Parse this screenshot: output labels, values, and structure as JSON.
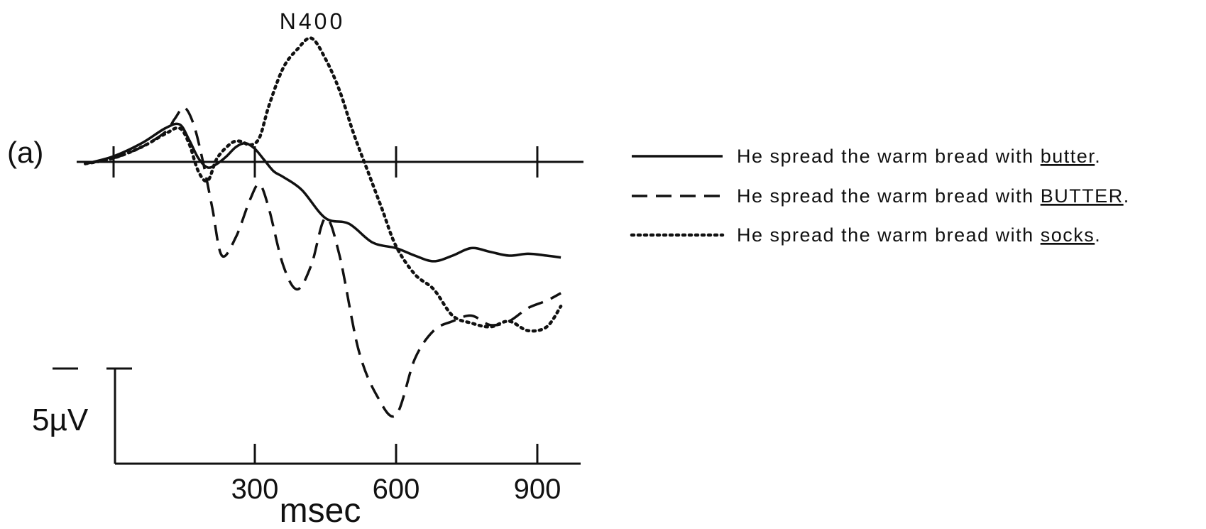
{
  "chart_data": {
    "type": "line",
    "panel_label": "(a)",
    "annotation": "N400",
    "xlabel": "msec",
    "ylabel": "",
    "xlim": [
      -100,
      1100
    ],
    "ylim": [
      -15,
      6
    ],
    "x_ticks": [
      0,
      300,
      600,
      900
    ],
    "x_tick_labels": [
      "300",
      "600",
      "900"
    ],
    "scale_bar": {
      "label": "5µV",
      "value": 5
    },
    "orientation_note": "negative plotted up",
    "series": [
      {
        "name": "He spread the warm bread with butter.",
        "style": "solid",
        "legend_prefix": "He spread the warm bread with ",
        "legend_underlined": "butter",
        "legend_suffix": ".",
        "x": [
          -60,
          0,
          60,
          110,
          140,
          160,
          180,
          200,
          220,
          240,
          260,
          280,
          300,
          320,
          340,
          360,
          400,
          450,
          500,
          550,
          600,
          640,
          680,
          720,
          760,
          800,
          840,
          880,
          920,
          950
        ],
        "y": [
          -0.1,
          0.3,
          1.0,
          1.8,
          2.0,
          1.2,
          0.2,
          -0.3,
          -0.1,
          0.3,
          0.8,
          1.0,
          0.7,
          0.1,
          -0.5,
          -0.8,
          -1.5,
          -3.0,
          -3.3,
          -4.3,
          -4.6,
          -5.0,
          -5.3,
          -5.0,
          -4.6,
          -4.8,
          -5.0,
          -4.9,
          -5.0,
          -5.1
        ]
      },
      {
        "name": "He spread the warm bread with BUTTER.",
        "style": "dashed",
        "legend_prefix": "He spread the warm bread with ",
        "legend_underlined": "BUTTER",
        "legend_suffix": ".",
        "x": [
          -60,
          0,
          60,
          110,
          130,
          150,
          170,
          190,
          210,
          230,
          260,
          290,
          310,
          330,
          360,
          390,
          420,
          450,
          480,
          520,
          560,
          600,
          640,
          680,
          720,
          760,
          800,
          840,
          880,
          920,
          950
        ],
        "y": [
          -0.1,
          0.2,
          0.8,
          1.6,
          2.3,
          2.9,
          2.0,
          0.0,
          -2.5,
          -5.0,
          -4.0,
          -2.0,
          -1.2,
          -2.5,
          -5.5,
          -6.8,
          -5.5,
          -3.0,
          -5.0,
          -10.0,
          -12.5,
          -13.5,
          -10.5,
          -9.0,
          -8.5,
          -8.2,
          -8.7,
          -8.5,
          -7.8,
          -7.4,
          -7.0
        ]
      },
      {
        "name": "He spread the warm bread with socks.",
        "style": "dotted",
        "legend_prefix": "He spread the warm bread with ",
        "legend_underlined": "socks",
        "legend_suffix": ".",
        "x": [
          -60,
          0,
          60,
          110,
          140,
          160,
          180,
          200,
          220,
          250,
          270,
          290,
          310,
          330,
          360,
          390,
          420,
          450,
          480,
          510,
          540,
          570,
          600,
          640,
          680,
          720,
          760,
          800,
          840,
          880,
          920,
          950
        ],
        "y": [
          -0.1,
          0.2,
          0.8,
          1.5,
          1.8,
          1.0,
          -0.5,
          -1.0,
          0.2,
          1.0,
          1.1,
          0.9,
          1.3,
          3.0,
          5.0,
          6.0,
          6.6,
          5.5,
          3.8,
          1.5,
          -0.5,
          -2.5,
          -4.5,
          -6.0,
          -6.8,
          -8.2,
          -8.6,
          -8.8,
          -8.5,
          -9.0,
          -8.8,
          -7.7
        ]
      }
    ]
  }
}
